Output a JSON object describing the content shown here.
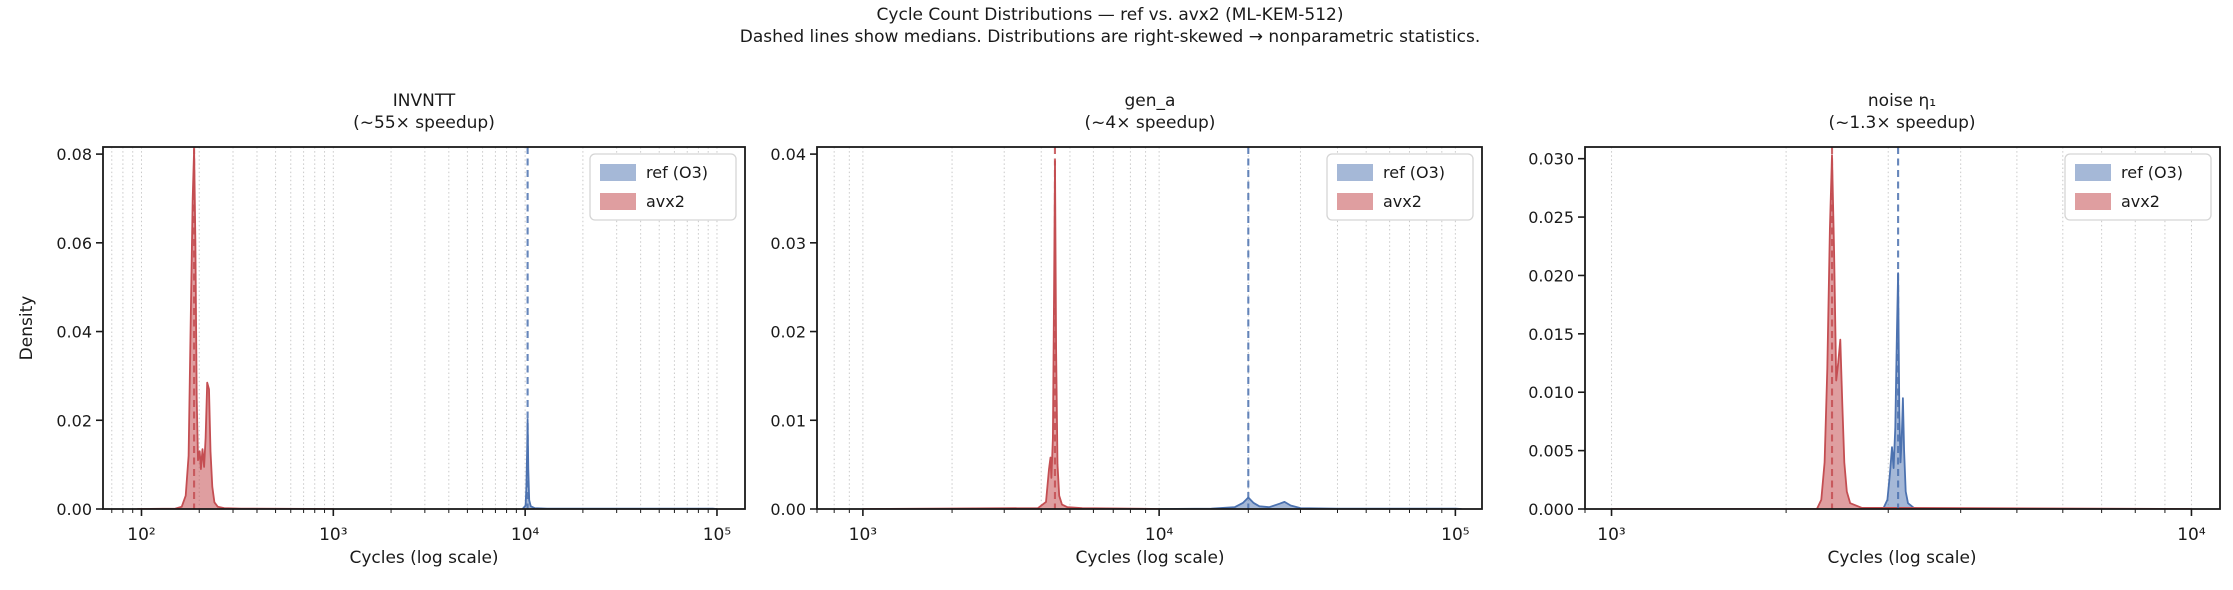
{
  "figure": {
    "title": "Cycle Count Distributions — ref vs. avx2  (ML-KEM-512)",
    "subtitle": "Dashed lines show medians. Distributions are right-skewed → nonparametric statistics.",
    "colors": {
      "ref": "#4C72B0",
      "ref_fill": "rgba(76,114,176,0.5)",
      "avx2": "#C44E52",
      "avx2_fill": "rgba(196,78,82,0.55)",
      "grid": "#c9c9c9",
      "spine": "#1a1a1a",
      "text": "#1a1a1a",
      "legend_border": "#d5d5d5"
    }
  },
  "chart_data": [
    {
      "type": "area",
      "id": "invntt",
      "title": "INVNTT",
      "subtitle": "(~55× speedup)",
      "xlabel": "Cycles (log scale)",
      "ylabel": "Density",
      "xscale": "log",
      "grid": "vertical-dotted",
      "legend_position": "upper right",
      "xlim": [
        63,
        140000
      ],
      "ylim": [
        0,
        0.0816
      ],
      "xticks": [
        {
          "v": 100,
          "label": "10²"
        },
        {
          "v": 1000,
          "label": "10³"
        },
        {
          "v": 10000,
          "label": "10⁴"
        },
        {
          "v": 100000,
          "label": "10⁵"
        }
      ],
      "yticks": [
        {
          "v": 0,
          "label": "0.00"
        },
        {
          "v": 0.02,
          "label": "0.02"
        },
        {
          "v": 0.04,
          "label": "0.04"
        },
        {
          "v": 0.06,
          "label": "0.06"
        },
        {
          "v": 0.08,
          "label": "0.08"
        }
      ],
      "series": [
        {
          "name": "ref (O3)",
          "role": "ref",
          "median": 10300,
          "points": [
            [
              9700,
              0
            ],
            [
              10050,
              0.0008
            ],
            [
              10150,
              0.005
            ],
            [
              10250,
              0.014
            ],
            [
              10300,
              0.0202
            ],
            [
              10380,
              0.009
            ],
            [
              10500,
              0.002
            ],
            [
              10700,
              0.0006
            ],
            [
              11200,
              0.0002
            ],
            [
              13000,
              0.0001
            ],
            [
              95000,
              0.0001
            ],
            [
              100000,
              0
            ]
          ]
        },
        {
          "name": "avx2",
          "role": "avx2",
          "median": 188,
          "points": [
            [
              95,
              0
            ],
            [
              150,
              0.0001
            ],
            [
              162,
              0.0005
            ],
            [
              170,
              0.003
            ],
            [
              176,
              0.012
            ],
            [
              181,
              0.045
            ],
            [
              185,
              0.07
            ],
            [
              188,
              0.081
            ],
            [
              191,
              0.06
            ],
            [
              194,
              0.025
            ],
            [
              197,
              0.011
            ],
            [
              201,
              0.013
            ],
            [
              204,
              0.009
            ],
            [
              208,
              0.0135
            ],
            [
              212,
              0.0095
            ],
            [
              216,
              0.016
            ],
            [
              220,
              0.0285
            ],
            [
              225,
              0.027
            ],
            [
              229,
              0.013
            ],
            [
              234,
              0.005
            ],
            [
              240,
              0.0015
            ],
            [
              250,
              0.0005
            ],
            [
              270,
              0.0002
            ],
            [
              330,
              0.0001
            ],
            [
              1000,
              0
            ]
          ]
        }
      ]
    },
    {
      "type": "area",
      "id": "gen-a",
      "title": "gen_a",
      "subtitle": "(~4× speedup)",
      "xlabel": "Cycles (log scale)",
      "ylabel": "",
      "xscale": "log",
      "grid": "vertical-dotted",
      "legend_position": "upper right",
      "xlim": [
        700,
        123000
      ],
      "ylim": [
        0,
        0.0408
      ],
      "xticks": [
        {
          "v": 1000,
          "label": "10³"
        },
        {
          "v": 10000,
          "label": "10⁴"
        },
        {
          "v": 100000,
          "label": "10⁵"
        }
      ],
      "yticks": [
        {
          "v": 0,
          "label": "0.00"
        },
        {
          "v": 0.01,
          "label": "0.01"
        },
        {
          "v": 0.02,
          "label": "0.02"
        },
        {
          "v": 0.03,
          "label": "0.03"
        },
        {
          "v": 0.04,
          "label": "0.04"
        }
      ],
      "series": [
        {
          "name": "ref (O3)",
          "role": "ref",
          "median": 20000,
          "points": [
            [
              10000,
              0
            ],
            [
              15000,
              5e-05
            ],
            [
              18000,
              0.0002
            ],
            [
              19200,
              0.0007
            ],
            [
              20000,
              0.0013
            ],
            [
              20800,
              0.0007
            ],
            [
              21800,
              0.0003
            ],
            [
              23500,
              0.0002
            ],
            [
              25500,
              0.0006
            ],
            [
              26500,
              0.0008
            ],
            [
              27800,
              0.0004
            ],
            [
              30000,
              0.0001
            ],
            [
              40000,
              5e-05
            ],
            [
              100000,
              5e-05
            ],
            [
              105000,
              0
            ]
          ]
        },
        {
          "name": "avx2",
          "role": "avx2",
          "median": 4450,
          "points": [
            [
              1000,
              0
            ],
            [
              3900,
              0.0001
            ],
            [
              4150,
              0.0008
            ],
            [
              4250,
              0.0045
            ],
            [
              4300,
              0.0058
            ],
            [
              4330,
              0.0035
            ],
            [
              4380,
              0.008
            ],
            [
              4420,
              0.025
            ],
            [
              4450,
              0.0392
            ],
            [
              4490,
              0.018
            ],
            [
              4540,
              0.005
            ],
            [
              4600,
              0.0015
            ],
            [
              4700,
              0.0005
            ],
            [
              4900,
              0.0002
            ],
            [
              5500,
              0.0001
            ],
            [
              10000,
              0
            ]
          ]
        }
      ]
    },
    {
      "type": "area",
      "id": "noise-eta1",
      "title": "noise η₁",
      "subtitle": "(~1.3× speedup)",
      "xlabel": "Cycles (log scale)",
      "ylabel": "",
      "xscale": "log",
      "grid": "vertical-dotted",
      "legend_position": "upper right",
      "xlim": [
        900,
        11200
      ],
      "ylim": [
        0,
        0.031
      ],
      "xticks": [
        {
          "v": 1000,
          "label": "10³"
        },
        {
          "v": 10000,
          "label": "10⁴"
        }
      ],
      "yticks": [
        {
          "v": 0,
          "label": "0.000"
        },
        {
          "v": 0.005,
          "label": "0.005"
        },
        {
          "v": 0.01,
          "label": "0.010"
        },
        {
          "v": 0.015,
          "label": "0.015"
        },
        {
          "v": 0.02,
          "label": "0.020"
        },
        {
          "v": 0.025,
          "label": "0.025"
        },
        {
          "v": 0.03,
          "label": "0.030"
        }
      ],
      "series": [
        {
          "name": "ref (O3)",
          "role": "ref",
          "median": 3120,
          "points": [
            [
              2940,
              0
            ],
            [
              2990,
              0.0008
            ],
            [
              3020,
              0.003
            ],
            [
              3045,
              0.0053
            ],
            [
              3065,
              0.0035
            ],
            [
              3085,
              0.007
            ],
            [
              3105,
              0.015
            ],
            [
              3120,
              0.0202
            ],
            [
              3135,
              0.0085
            ],
            [
              3150,
              0.004
            ],
            [
              3165,
              0.006
            ],
            [
              3180,
              0.0095
            ],
            [
              3195,
              0.005
            ],
            [
              3215,
              0.0015
            ],
            [
              3245,
              0.0005
            ],
            [
              3320,
              0.0001
            ],
            [
              3420,
              0
            ]
          ]
        },
        {
          "name": "avx2",
          "role": "avx2",
          "median": 2400,
          "points": [
            [
              1000,
              0
            ],
            [
              2260,
              0
            ],
            [
              2300,
              0.0008
            ],
            [
              2330,
              0.004
            ],
            [
              2355,
              0.012
            ],
            [
              2380,
              0.024
            ],
            [
              2400,
              0.0303
            ],
            [
              2420,
              0.022
            ],
            [
              2440,
              0.011
            ],
            [
              2460,
              0.0125
            ],
            [
              2480,
              0.0145
            ],
            [
              2500,
              0.009
            ],
            [
              2520,
              0.004
            ],
            [
              2545,
              0.0015
            ],
            [
              2580,
              0.0005
            ],
            [
              2700,
              0.0001
            ],
            [
              10000,
              0
            ]
          ]
        }
      ]
    }
  ]
}
